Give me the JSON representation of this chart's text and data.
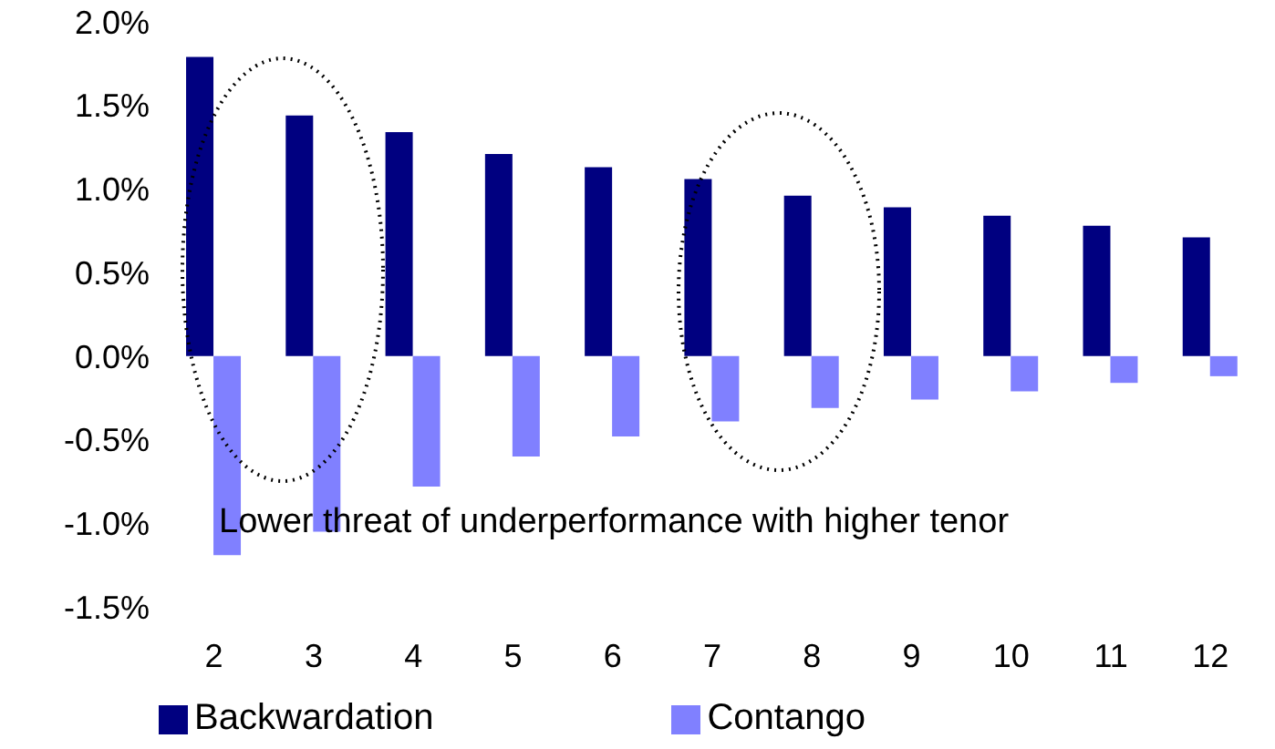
{
  "chart_data": {
    "type": "bar",
    "categories": [
      "2",
      "3",
      "4",
      "5",
      "6",
      "7",
      "8",
      "9",
      "10",
      "11",
      "12"
    ],
    "series": [
      {
        "name": "Backwardation",
        "color": "#000080",
        "values": [
          1.79,
          1.44,
          1.34,
          1.21,
          1.13,
          1.06,
          0.96,
          0.89,
          0.84,
          0.78,
          0.71
        ]
      },
      {
        "name": "Contango",
        "color": "#8080ff",
        "values": [
          -1.19,
          -1.05,
          -0.78,
          -0.6,
          -0.48,
          -0.39,
          -0.31,
          -0.26,
          -0.21,
          -0.16,
          -0.12
        ]
      }
    ],
    "ylim": [
      -1.5,
      2.0
    ],
    "yticks": [
      {
        "value": -1.5,
        "label": "-1.5%"
      },
      {
        "value": -1.0,
        "label": "-1.0%"
      },
      {
        "value": -0.5,
        "label": "-0.5%"
      },
      {
        "value": 0,
        "label": "0.0%"
      },
      {
        "value": 0.5,
        "label": "0.5%"
      },
      {
        "value": 1.0,
        "label": "1.0%"
      },
      {
        "value": 1.5,
        "label": "1.5%"
      },
      {
        "value": 2.0,
        "label": "2.0%"
      }
    ],
    "annotations": [
      "Lower threat of underperformance with higher tenor"
    ],
    "legend": "bottom",
    "grid": false
  }
}
